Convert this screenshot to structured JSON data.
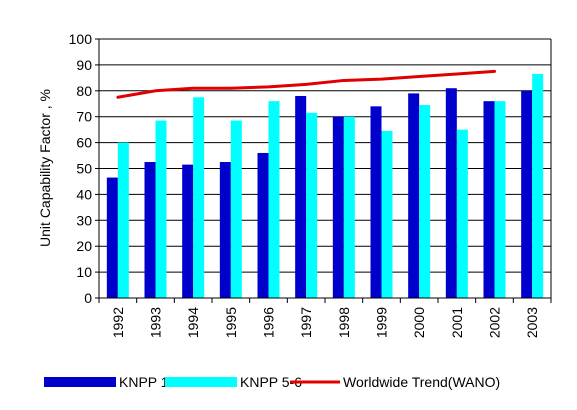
{
  "chart_data": {
    "type": "bar",
    "title": "",
    "xlabel": "",
    "ylabel": "Unit Capability Factor , %",
    "ylim": [
      0,
      100
    ],
    "yticks": [
      0,
      10,
      20,
      30,
      40,
      50,
      60,
      70,
      80,
      90,
      100
    ],
    "grid": "horizontal",
    "legend_position": "bottom",
    "categories": [
      "1992",
      "1993",
      "1994",
      "1995",
      "1996",
      "1997",
      "1998",
      "1999",
      "2000",
      "2001",
      "2002",
      "2003"
    ],
    "series": [
      {
        "name": "KNPP 1-4",
        "type": "bar",
        "color": "#0000cc",
        "values": [
          46.5,
          52.5,
          51.5,
          52.5,
          56,
          78,
          70,
          74,
          79,
          81,
          76,
          80
        ]
      },
      {
        "name": "KNPP 5-6",
        "type": "bar",
        "color": "#00ffff",
        "values": [
          60,
          68.5,
          77.5,
          68.5,
          76,
          71.5,
          70,
          64.5,
          74.5,
          65,
          76,
          86.5
        ]
      },
      {
        "name": "Worldwide Trend(WANO)",
        "type": "line",
        "color": "#e00000",
        "values": [
          77.5,
          80,
          81,
          81,
          81.5,
          82.5,
          84,
          84.5,
          85.5,
          86.5,
          87.5,
          null
        ]
      }
    ]
  }
}
